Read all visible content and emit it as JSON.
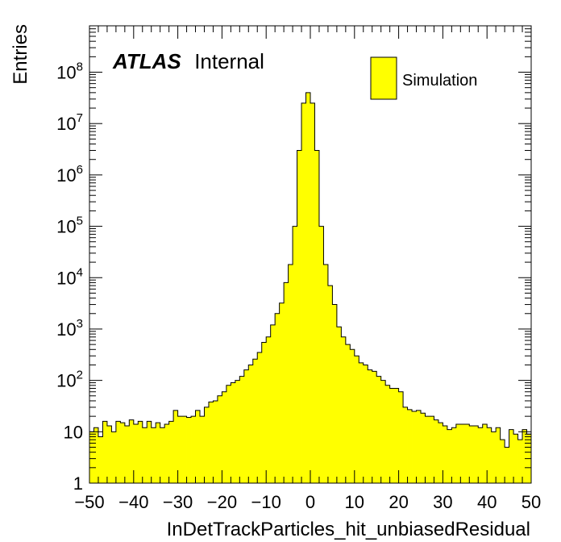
{
  "chart_data": {
    "type": "bar",
    "title": "",
    "xlabel": "InDetTrackParticles_hit_unbiasedResidual",
    "ylabel": "Entries",
    "xlim": [
      -50,
      50
    ],
    "ylim": [
      1,
      800000000
    ],
    "y_scale": "log",
    "bin_width": 1,
    "x_ticks": [
      "−50",
      "−40",
      "−30",
      "−20",
      "−10",
      "0",
      "10",
      "20",
      "30",
      "40",
      "50"
    ],
    "y_ticks": [
      {
        "base": "1",
        "exp": ""
      },
      {
        "base": "10",
        "exp": ""
      },
      {
        "base": "10",
        "exp": "2"
      },
      {
        "base": "10",
        "exp": "3"
      },
      {
        "base": "10",
        "exp": "4"
      },
      {
        "base": "10",
        "exp": "5"
      },
      {
        "base": "10",
        "exp": "6"
      },
      {
        "base": "10",
        "exp": "7"
      },
      {
        "base": "10",
        "exp": "8"
      }
    ],
    "fill_color": "#ffff00",
    "line_color": "#000000",
    "legend_position": "top-right",
    "series": [
      {
        "name": "Simulation",
        "x": [
          -50,
          -49,
          -48,
          -47,
          -46,
          -45,
          -44,
          -43,
          -42,
          -41,
          -40,
          -39,
          -38,
          -37,
          -36,
          -35,
          -34,
          -33,
          -32,
          -31,
          -30,
          -29,
          -28,
          -27,
          -26,
          -25,
          -24,
          -23,
          -22,
          -21,
          -20,
          -19,
          -18,
          -17,
          -16,
          -15,
          -14,
          -13,
          -12,
          -11,
          -10,
          -9,
          -8,
          -7,
          -6,
          -5,
          -4,
          -3,
          -2,
          -1,
          0,
          1,
          2,
          3,
          4,
          5,
          6,
          7,
          8,
          9,
          10,
          11,
          12,
          13,
          14,
          15,
          16,
          17,
          18,
          19,
          20,
          21,
          22,
          23,
          24,
          25,
          26,
          27,
          28,
          29,
          30,
          31,
          32,
          33,
          34,
          35,
          36,
          37,
          38,
          39,
          40,
          41,
          42,
          43,
          44,
          45,
          46,
          47,
          48,
          49
        ],
        "values": [
          10,
          12,
          8,
          16,
          13,
          10,
          16,
          15,
          13,
          17,
          14,
          16,
          12,
          16,
          12,
          15,
          12,
          14,
          16,
          26,
          20,
          20,
          19,
          20,
          26,
          20,
          30,
          38,
          40,
          50,
          60,
          80,
          90,
          100,
          120,
          160,
          200,
          260,
          350,
          550,
          700,
          1200,
          2000,
          3200,
          8000,
          18000,
          100000,
          3000000,
          25000000,
          40000000,
          25000000,
          3000000,
          100000,
          18000,
          7000,
          3000,
          1100,
          700,
          500,
          400,
          300,
          220,
          200,
          160,
          150,
          120,
          100,
          80,
          70,
          70,
          60,
          30,
          27,
          25,
          26,
          23,
          20,
          20,
          17,
          15,
          13,
          11,
          12,
          14,
          14,
          14,
          13,
          13,
          12,
          14,
          12,
          10,
          12,
          7,
          5,
          11,
          9,
          7,
          11,
          9
        ]
      }
    ],
    "annotations": [
      {
        "text_bold": "ATLAS",
        "text": "Internal"
      }
    ]
  }
}
